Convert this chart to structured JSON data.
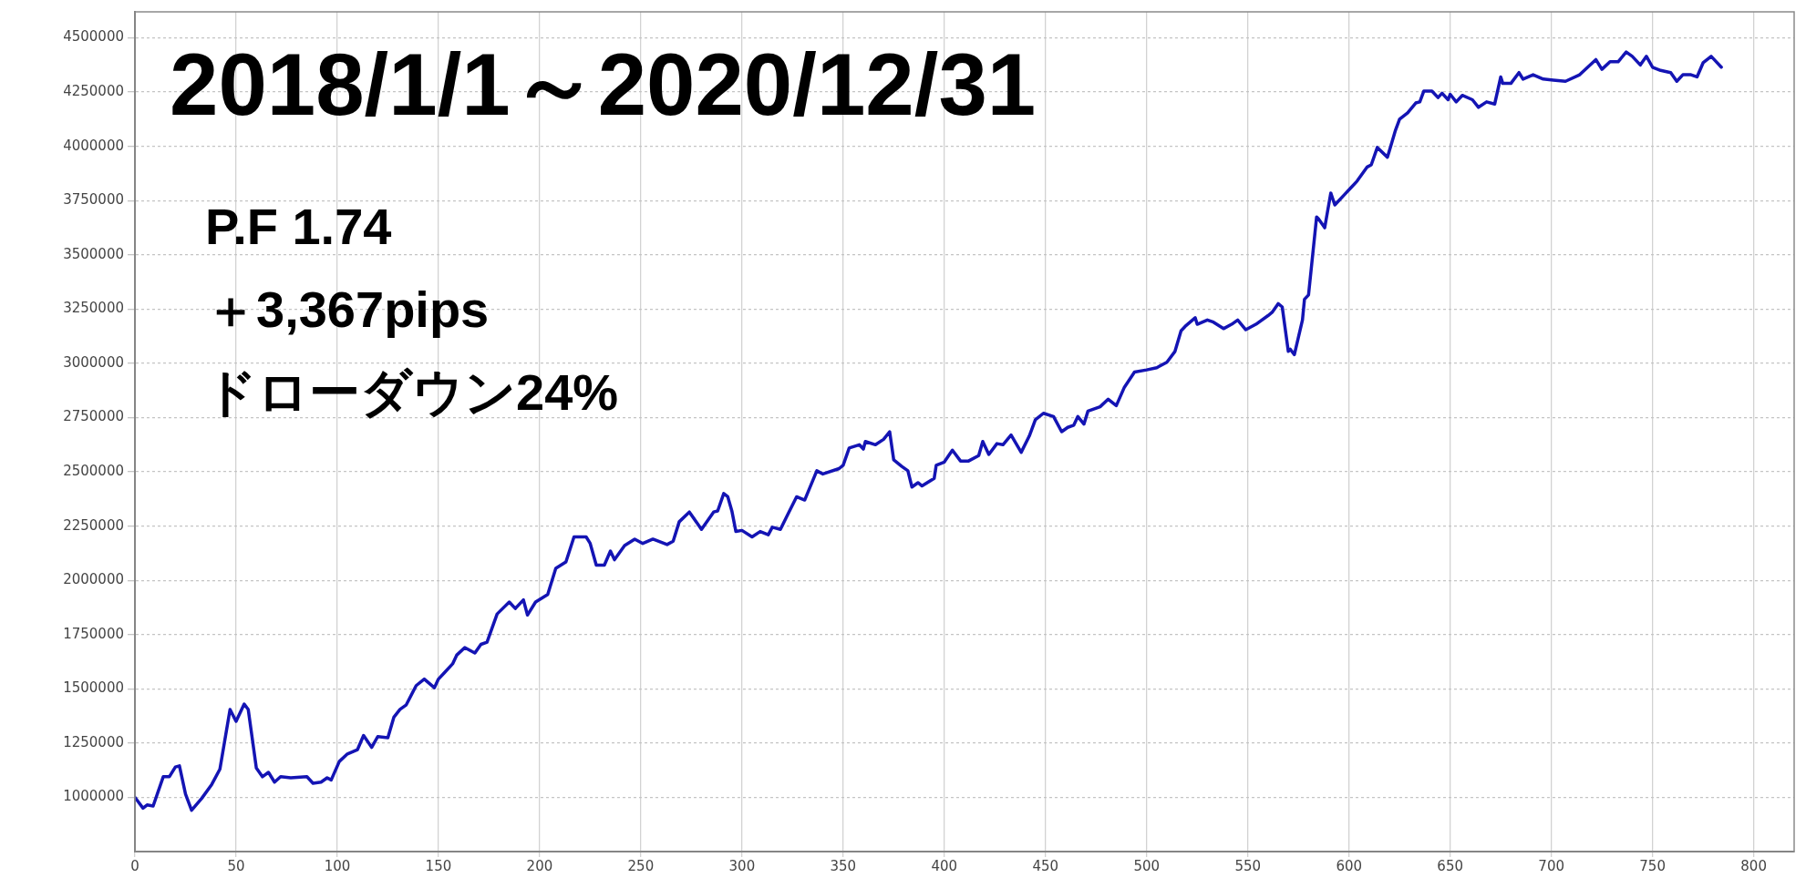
{
  "chart_data": {
    "type": "line",
    "title": "2018/1/1～2020/12/31",
    "annotations": [
      "P.F 1.74",
      "＋3,367pips",
      "ドローダウン24%"
    ],
    "x": [
      0,
      4,
      6,
      9,
      14,
      17,
      20,
      22,
      25,
      28,
      33,
      38,
      42,
      47,
      50,
      54,
      56,
      60,
      63,
      66,
      69,
      72,
      77,
      85,
      88,
      92,
      95,
      97,
      101,
      105,
      110,
      113,
      117,
      120,
      125,
      128,
      131,
      134,
      139,
      143,
      148,
      150,
      153,
      157,
      159,
      163,
      168,
      171,
      174,
      179,
      185,
      188,
      192,
      194,
      198,
      204,
      208,
      213,
      217,
      223,
      225,
      228,
      232,
      235,
      237,
      242,
      247,
      251,
      256,
      263,
      266,
      269,
      274,
      280,
      286,
      288,
      291,
      293,
      295,
      297,
      300,
      305,
      309,
      313,
      315,
      319,
      323,
      327,
      331,
      337,
      340,
      348,
      350,
      353,
      358,
      360,
      361,
      366,
      370,
      373,
      375,
      379,
      382,
      384,
      387,
      389,
      395,
      396,
      400,
      404,
      408,
      412,
      417,
      419,
      422,
      426,
      429,
      433,
      438,
      442,
      445,
      449,
      454,
      458,
      461,
      464,
      466,
      469,
      471,
      477,
      481,
      485,
      489,
      494,
      500,
      505,
      510,
      514,
      517,
      519,
      524,
      525,
      530,
      533,
      538,
      542,
      545,
      549,
      554,
      560,
      562,
      565,
      567,
      570,
      571,
      573,
      577,
      578,
      580,
      584,
      585,
      588,
      591,
      593,
      598,
      601,
      604,
      609,
      611,
      614,
      619,
      623,
      625,
      629,
      633,
      635,
      637,
      641,
      644,
      646,
      649,
      650,
      653,
      656,
      661,
      664,
      668,
      672,
      675,
      676,
      680,
      684,
      686,
      691,
      696,
      701,
      707,
      714,
      718,
      722,
      725,
      729,
      733,
      737,
      740,
      744,
      747,
      750,
      754,
      759,
      762,
      765,
      769,
      772,
      775,
      779,
      781,
      784
    ],
    "values": [
      1000000,
      950000,
      965000,
      960000,
      1095000,
      1095000,
      1140000,
      1145000,
      1015000,
      940000,
      995000,
      1060000,
      1130000,
      1405000,
      1350000,
      1430000,
      1405000,
      1135000,
      1095000,
      1115000,
      1070000,
      1095000,
      1090000,
      1095000,
      1065000,
      1070000,
      1090000,
      1080000,
      1165000,
      1200000,
      1220000,
      1285000,
      1230000,
      1280000,
      1275000,
      1370000,
      1405000,
      1425000,
      1515000,
      1545000,
      1505000,
      1545000,
      1575000,
      1615000,
      1655000,
      1690000,
      1665000,
      1705000,
      1715000,
      1845000,
      1900000,
      1870000,
      1910000,
      1840000,
      1900000,
      1935000,
      2055000,
      2085000,
      2200000,
      2200000,
      2170000,
      2070000,
      2070000,
      2135000,
      2095000,
      2160000,
      2190000,
      2170000,
      2190000,
      2165000,
      2180000,
      2270000,
      2315000,
      2235000,
      2315000,
      2320000,
      2400000,
      2385000,
      2320000,
      2225000,
      2230000,
      2200000,
      2225000,
      2210000,
      2245000,
      2235000,
      2310000,
      2385000,
      2370000,
      2505000,
      2490000,
      2515000,
      2530000,
      2610000,
      2625000,
      2605000,
      2640000,
      2625000,
      2650000,
      2685000,
      2555000,
      2525000,
      2505000,
      2430000,
      2450000,
      2435000,
      2470000,
      2530000,
      2545000,
      2600000,
      2550000,
      2550000,
      2575000,
      2640000,
      2580000,
      2630000,
      2625000,
      2670000,
      2590000,
      2665000,
      2740000,
      2770000,
      2755000,
      2685000,
      2705000,
      2715000,
      2755000,
      2720000,
      2780000,
      2800000,
      2835000,
      2805000,
      2890000,
      2960000,
      2970000,
      2980000,
      3005000,
      3055000,
      3150000,
      3170000,
      3210000,
      3180000,
      3200000,
      3190000,
      3160000,
      3180000,
      3200000,
      3155000,
      3180000,
      3220000,
      3235000,
      3275000,
      3260000,
      3055000,
      3065000,
      3040000,
      3200000,
      3295000,
      3315000,
      3675000,
      3665000,
      3625000,
      3785000,
      3730000,
      3780000,
      3810000,
      3840000,
      3905000,
      3915000,
      3995000,
      3950000,
      4075000,
      4125000,
      4155000,
      4200000,
      4205000,
      4255000,
      4255000,
      4225000,
      4245000,
      4215000,
      4240000,
      4205000,
      4235000,
      4215000,
      4180000,
      4205000,
      4195000,
      4320000,
      4290000,
      4290000,
      4340000,
      4310000,
      4330000,
      4310000,
      4305000,
      4300000,
      4330000,
      4365000,
      4400000,
      4355000,
      4390000,
      4390000,
      4435000,
      4415000,
      4375000,
      4415000,
      4365000,
      4350000,
      4340000,
      4300000,
      4330000,
      4330000,
      4320000,
      4385000,
      4415000,
      4395000,
      4365000
    ],
    "color": "#1414b4",
    "xlim": [
      0,
      820
    ],
    "ylim": [
      750000,
      4620000
    ],
    "xticks": [
      0,
      50,
      100,
      150,
      200,
      250,
      300,
      350,
      400,
      450,
      500,
      550,
      600,
      650,
      700,
      750,
      800
    ],
    "yticks": [
      1000000,
      1250000,
      1500000,
      1750000,
      2000000,
      2250000,
      2500000,
      2750000,
      3000000,
      3250000,
      3500000,
      3750000,
      4000000,
      4250000,
      4500000
    ],
    "grid": true,
    "marker": "none",
    "legend": false
  }
}
